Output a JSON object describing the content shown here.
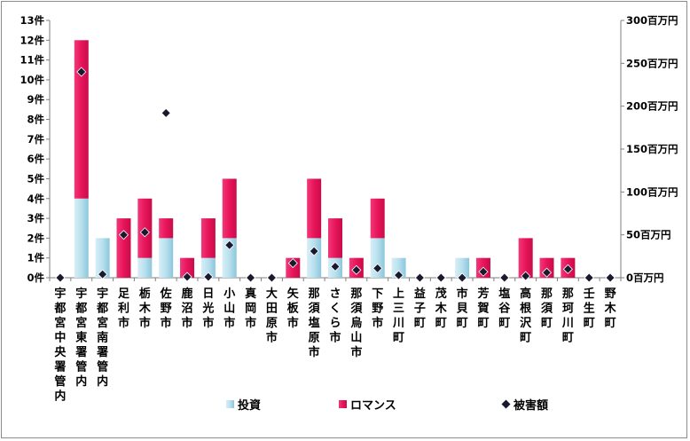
{
  "chart_data": {
    "type": "bar",
    "stacked": true,
    "categories": [
      "宇都宮中央署管内",
      "宇都宮東署管内",
      "宇都宮南署管内",
      "足利市",
      "栃木市",
      "佐野市",
      "鹿沼市",
      "日光市",
      "小山市",
      "真岡市",
      "大田原市",
      "矢板市",
      "那須塩原市",
      "さくら市",
      "那須烏山市",
      "下野市",
      "上三川町",
      "益子町",
      "茂木町",
      "市貝町",
      "芳賀町",
      "塩谷町",
      "高根沢町",
      "那須町",
      "那珂川町",
      "壬生町",
      "野木町"
    ],
    "series": [
      {
        "name": "投資",
        "type": "bar",
        "axis": "left",
        "color": "#a8d8e8",
        "values": [
          0,
          4,
          2,
          0,
          1,
          2,
          0,
          1,
          2,
          0,
          0,
          0,
          2,
          1,
          0,
          2,
          1,
          0,
          0,
          1,
          0,
          0,
          0,
          0,
          0,
          0,
          0
        ]
      },
      {
        "name": "ロマンス",
        "type": "bar",
        "axis": "left",
        "color": "#e8145a",
        "values": [
          0,
          8,
          0,
          3,
          3,
          1,
          1,
          2,
          3,
          0,
          0,
          1,
          3,
          2,
          1,
          2,
          0,
          0,
          0,
          0,
          1,
          0,
          2,
          1,
          1,
          0,
          0
        ]
      },
      {
        "name": "被害額",
        "type": "marker",
        "axis": "right",
        "color": "#1a1a2e",
        "values": [
          0,
          240,
          4,
          50,
          53,
          192,
          1,
          1,
          38,
          0,
          0,
          17,
          31,
          13,
          9,
          11,
          3,
          0,
          0,
          0,
          7,
          0,
          2,
          6,
          10,
          0,
          0
        ]
      }
    ],
    "left_axis": {
      "ticks": [
        "0件",
        "1件",
        "2件",
        "3件",
        "4件",
        "5件",
        "6件",
        "7件",
        "8件",
        "9件",
        "10件",
        "11件",
        "12件",
        "13件"
      ],
      "min": 0,
      "max": 13
    },
    "right_axis": {
      "ticks": [
        "0百万円",
        "50百万円",
        "100百万円",
        "150百万円",
        "200百万円",
        "250百万円",
        "300百万円"
      ],
      "min": 0,
      "max": 300
    },
    "legend": [
      {
        "label": "投資",
        "symbol": "box",
        "color": "#a8d8e8"
      },
      {
        "label": "ロマンス",
        "symbol": "box",
        "color": "#e8145a"
      },
      {
        "label": "被害額",
        "symbol": "diamond",
        "color": "#1a1a2e"
      }
    ],
    "legend_position": "bottom",
    "grid": false
  }
}
